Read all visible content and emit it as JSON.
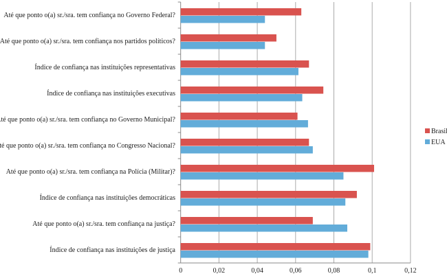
{
  "chart_data": {
    "type": "bar",
    "orientation": "horizontal",
    "categories": [
      "Até que ponto o(a) sr./sra. tem confiança no Governo Federal?",
      "Até que ponto o(a) sr./sra. tem confiança nos partidos políticos?",
      "Índice de confiança nas instituições representativas",
      "Índice de confiança nas instituições executivas",
      "Até que ponto o(a) sr./sra. tem confiança no Governo Municipal?",
      "Até que ponto o(a) sr./sra. tem confiança no Congresso Nacional?",
      "Até que ponto o(a) sr./sra. tem confiança na Polícia (Militar)?",
      "Índice de confiança nas instituições democráticas",
      "Até que ponto o(a) sr./sra. tem confiança na justiça?",
      "Índice de confiança nas instituições de justiça"
    ],
    "series": [
      {
        "name": "Brasil",
        "color": "#d9534f",
        "values": [
          0.063,
          0.05,
          0.067,
          0.0745,
          0.061,
          0.067,
          0.101,
          0.092,
          0.069,
          0.099
        ]
      },
      {
        "name": "EUA",
        "color": "#62acd9",
        "values": [
          0.044,
          0.044,
          0.0615,
          0.0635,
          0.0665,
          0.069,
          0.085,
          0.086,
          0.087,
          0.098
        ]
      }
    ],
    "xlim": [
      0,
      0.12
    ],
    "xticks": [
      "0",
      "0,02",
      "0,04",
      "0,06",
      "0,08",
      "0,1",
      "0,12"
    ],
    "grid": true,
    "legend": "right",
    "title": "",
    "xlabel": "",
    "ylabel": ""
  }
}
